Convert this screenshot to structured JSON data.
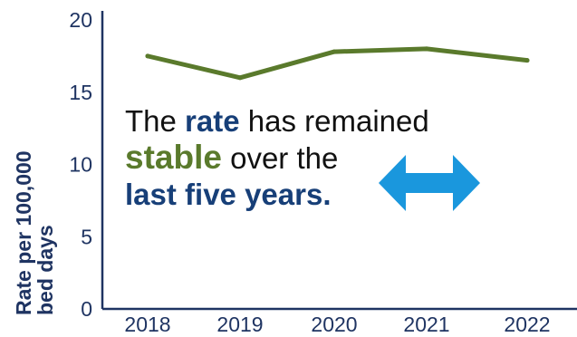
{
  "colors": {
    "axis": "#1f3462",
    "text": "#111111",
    "line": "#5a7a2c",
    "navy": "#173f78",
    "green": "#5a7a2c",
    "arrow": "#1a97dd"
  },
  "chart_data": {
    "type": "line",
    "categories": [
      "2018",
      "2019",
      "2020",
      "2021",
      "2022"
    ],
    "series": [
      {
        "values": [
          17.5,
          16.0,
          17.8,
          18.0,
          17.2
        ]
      }
    ],
    "ylim": [
      0,
      20
    ],
    "yticks": [
      "0",
      "5",
      "10",
      "15",
      "20"
    ],
    "xlabel": "",
    "ylabel": [
      "Rate per 100,000",
      "bed days"
    ],
    "grid": false
  },
  "annotation": {
    "line1_prefix": "The ",
    "line1_highlight": "rate",
    "line1_suffix": " has remained",
    "line2_highlight": "stable",
    "line2_suffix": " over the",
    "line3_highlight": "last five years."
  },
  "icons": {
    "arrow": "double-headed-horizontal-arrow-icon"
  }
}
